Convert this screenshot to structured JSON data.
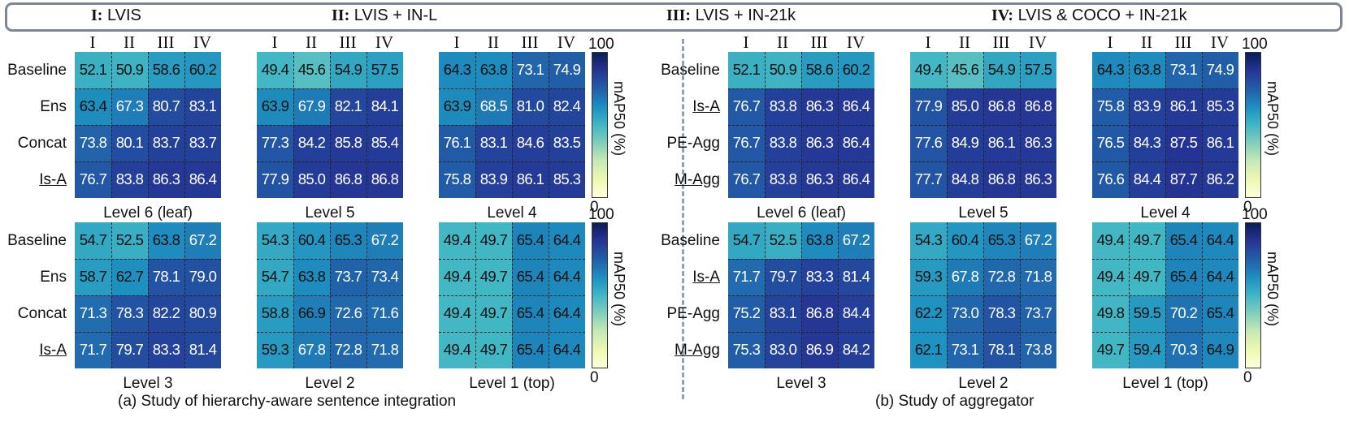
{
  "legend": [
    {
      "num": "I:",
      "text": " LVIS"
    },
    {
      "num": "II:",
      "text": "  LVIS + IN-L"
    },
    {
      "num": "III:",
      "text": " LVIS + IN-21k"
    },
    {
      "num": "IV:",
      "text": " LVIS & COCO + IN-21k"
    }
  ],
  "colorbar": {
    "max_label": "100",
    "min_label": "0",
    "label": "mAP50 (%)"
  },
  "captions": [
    "(a) Study of hierarchy-aware sentence integration",
    "(b) Study of aggregator"
  ],
  "chart_data": [
    {
      "type": "heatmap",
      "title": "Level 6 (leaf)",
      "columns": [
        "I",
        "II",
        "III",
        "IV"
      ],
      "rows": [
        "Baseline",
        "Ens",
        "Concat",
        "Is-A"
      ],
      "values": [
        [
          52.1,
          50.9,
          58.6,
          60.2
        ],
        [
          63.4,
          67.3,
          80.7,
          83.1
        ],
        [
          73.8,
          80.1,
          83.7,
          83.7
        ],
        [
          76.7,
          83.8,
          86.3,
          86.4
        ]
      ],
      "vmin": 0,
      "vmax": 100
    },
    {
      "type": "heatmap",
      "title": "Level 5",
      "columns": [
        "I",
        "II",
        "III",
        "IV"
      ],
      "rows": [
        "Baseline",
        "Ens",
        "Concat",
        "Is-A"
      ],
      "values": [
        [
          49.4,
          45.6,
          54.9,
          57.5
        ],
        [
          63.9,
          67.9,
          82.1,
          84.1
        ],
        [
          77.3,
          84.2,
          85.8,
          85.4
        ],
        [
          77.9,
          85.0,
          86.8,
          86.8
        ]
      ],
      "vmin": 0,
      "vmax": 100
    },
    {
      "type": "heatmap",
      "title": "Level 4",
      "columns": [
        "I",
        "II",
        "III",
        "IV"
      ],
      "rows": [
        "Baseline",
        "Ens",
        "Concat",
        "Is-A"
      ],
      "values": [
        [
          64.3,
          63.8,
          73.1,
          74.9
        ],
        [
          63.9,
          68.5,
          81.0,
          82.4
        ],
        [
          76.1,
          83.1,
          84.6,
          83.5
        ],
        [
          75.8,
          83.9,
          86.1,
          85.3
        ]
      ],
      "vmin": 0,
      "vmax": 100
    },
    {
      "type": "heatmap",
      "title": "Level 3",
      "columns": [
        "I",
        "II",
        "III",
        "IV"
      ],
      "rows": [
        "Baseline",
        "Ens",
        "Concat",
        "Is-A"
      ],
      "values": [
        [
          54.7,
          52.5,
          63.8,
          67.2
        ],
        [
          58.7,
          62.7,
          78.1,
          79.0
        ],
        [
          71.3,
          78.3,
          82.2,
          80.9
        ],
        [
          71.7,
          79.7,
          83.3,
          81.4
        ]
      ],
      "vmin": 0,
      "vmax": 100
    },
    {
      "type": "heatmap",
      "title": "Level 2",
      "columns": [
        "I",
        "II",
        "III",
        "IV"
      ],
      "rows": [
        "Baseline",
        "Ens",
        "Concat",
        "Is-A"
      ],
      "values": [
        [
          54.3,
          60.4,
          65.3,
          67.2
        ],
        [
          54.7,
          63.8,
          73.7,
          73.4
        ],
        [
          58.8,
          66.9,
          72.6,
          71.6
        ],
        [
          59.3,
          67.8,
          72.8,
          71.8
        ]
      ],
      "vmin": 0,
      "vmax": 100
    },
    {
      "type": "heatmap",
      "title": "Level 1 (top)",
      "columns": [
        "I",
        "II",
        "III",
        "IV"
      ],
      "rows": [
        "Baseline",
        "Ens",
        "Concat",
        "Is-A"
      ],
      "values": [
        [
          49.4,
          49.7,
          65.4,
          64.4
        ],
        [
          49.4,
          49.7,
          65.4,
          64.4
        ],
        [
          49.4,
          49.7,
          65.4,
          64.4
        ],
        [
          49.4,
          49.7,
          65.4,
          64.4
        ]
      ],
      "vmin": 0,
      "vmax": 100
    },
    {
      "type": "heatmap",
      "title": "Level 6 (leaf)",
      "columns": [
        "I",
        "II",
        "III",
        "IV"
      ],
      "rows": [
        "Baseline",
        "Is-A",
        "PE-Agg",
        "M-Agg"
      ],
      "values": [
        [
          52.1,
          50.9,
          58.6,
          60.2
        ],
        [
          76.7,
          83.8,
          86.3,
          86.4
        ],
        [
          76.7,
          83.8,
          86.3,
          86.4
        ],
        [
          76.7,
          83.8,
          86.3,
          86.4
        ]
      ],
      "vmin": 0,
      "vmax": 100
    },
    {
      "type": "heatmap",
      "title": "Level 5",
      "columns": [
        "I",
        "II",
        "III",
        "IV"
      ],
      "rows": [
        "Baseline",
        "Is-A",
        "PE-Agg",
        "M-Agg"
      ],
      "values": [
        [
          49.4,
          45.6,
          54.9,
          57.5
        ],
        [
          77.9,
          85.0,
          86.8,
          86.8
        ],
        [
          77.6,
          84.9,
          86.1,
          86.3
        ],
        [
          77.7,
          84.8,
          86.8,
          86.3
        ]
      ],
      "vmin": 0,
      "vmax": 100
    },
    {
      "type": "heatmap",
      "title": "Level 4",
      "columns": [
        "I",
        "II",
        "III",
        "IV"
      ],
      "rows": [
        "Baseline",
        "Is-A",
        "PE-Agg",
        "M-Agg"
      ],
      "values": [
        [
          64.3,
          63.8,
          73.1,
          74.9
        ],
        [
          75.8,
          83.9,
          86.1,
          85.3
        ],
        [
          76.5,
          84.3,
          87.5,
          86.1
        ],
        [
          76.6,
          84.4,
          87.7,
          86.2
        ]
      ],
      "vmin": 0,
      "vmax": 100
    },
    {
      "type": "heatmap",
      "title": "Level 3",
      "columns": [
        "I",
        "II",
        "III",
        "IV"
      ],
      "rows": [
        "Baseline",
        "Is-A",
        "PE-Agg",
        "M-Agg"
      ],
      "values": [
        [
          54.7,
          52.5,
          63.8,
          67.2
        ],
        [
          71.7,
          79.7,
          83.3,
          81.4
        ],
        [
          75.2,
          83.1,
          86.8,
          84.4
        ],
        [
          75.3,
          83.0,
          86.9,
          84.2
        ]
      ],
      "vmin": 0,
      "vmax": 100
    },
    {
      "type": "heatmap",
      "title": "Level 2",
      "columns": [
        "I",
        "II",
        "III",
        "IV"
      ],
      "rows": [
        "Baseline",
        "Is-A",
        "PE-Agg",
        "M-Agg"
      ],
      "values": [
        [
          54.3,
          60.4,
          65.3,
          67.2
        ],
        [
          59.3,
          67.8,
          72.8,
          71.8
        ],
        [
          62.2,
          73.0,
          78.3,
          73.7
        ],
        [
          62.1,
          73.1,
          78.1,
          73.8
        ]
      ],
      "vmin": 0,
      "vmax": 100
    },
    {
      "type": "heatmap",
      "title": "Level 1 (top)",
      "columns": [
        "I",
        "II",
        "III",
        "IV"
      ],
      "rows": [
        "Baseline",
        "Is-A",
        "PE-Agg",
        "M-Agg"
      ],
      "values": [
        [
          49.4,
          49.7,
          65.4,
          64.4
        ],
        [
          49.4,
          49.7,
          65.4,
          64.4
        ],
        [
          49.8,
          59.5,
          70.2,
          65.4
        ],
        [
          49.7,
          59.4,
          70.3,
          64.9
        ]
      ],
      "vmin": 0,
      "vmax": 100
    }
  ]
}
